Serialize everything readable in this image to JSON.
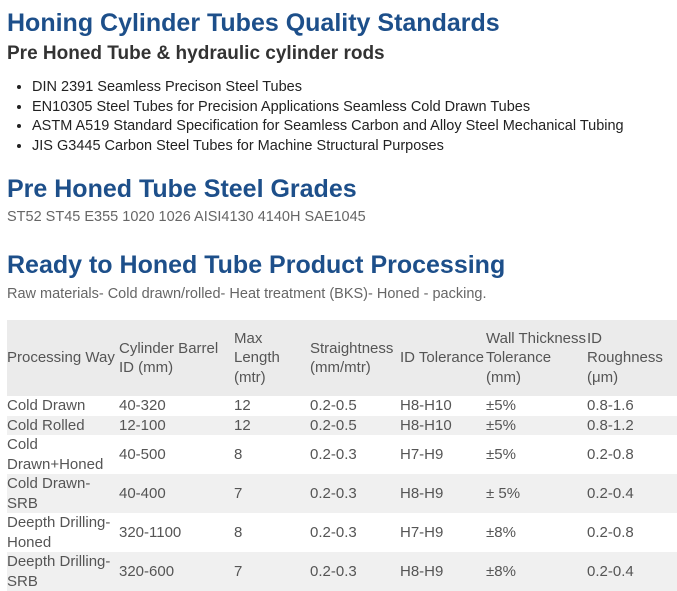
{
  "header": {
    "title": "Honing Cylinder Tubes Quality Standards",
    "subtitle": "Pre Honed Tube & hydraulic cylinder rods"
  },
  "standards": [
    "DIN 2391 Seamless Precison Steel Tubes",
    "EN10305 Steel Tubes for Precision Applications Seamless Cold Drawn Tubes",
    "ASTM A519 Standard Specification for Seamless Carbon and Alloy Steel Mechanical Tubing",
    "JIS G3445 Carbon Steel Tubes for Machine Structural Purposes"
  ],
  "grades": {
    "title": "Pre Honed Tube Steel Grades",
    "text": "ST52 ST45 E355 1020 1026 AISI4130 4140H SAE1045"
  },
  "processing": {
    "title": "Ready to Honed Tube Product Processing",
    "text": "Raw materials- Cold drawn/rolled- Heat treatment (BKS)- Honed - packing."
  },
  "table": {
    "columns": [
      "Processing Way",
      "Cylinder Barrel ID (mm)",
      "Max Length (mtr)",
      "Straightness (mm/mtr)",
      "ID Tolerance",
      "Wall Thickness Tolerance (mm)",
      "ID Roughness (μm)"
    ],
    "rows": [
      [
        "Cold Drawn",
        "40-320",
        "12",
        "0.2-0.5",
        "H8-H10",
        "±5%",
        "0.8-1.6"
      ],
      [
        "Cold Rolled",
        "12-100",
        "12",
        "0.2-0.5",
        "H8-H10",
        "±5%",
        "0.8-1.2"
      ],
      [
        "Cold Drawn+Honed",
        "40-500",
        "8",
        "0.2-0.3",
        "H7-H9",
        "±5%",
        "0.2-0.8"
      ],
      [
        "Cold Drawn-SRB",
        "40-400",
        "7",
        "0.2-0.3",
        "H8-H9",
        "± 5%",
        "0.2-0.4"
      ],
      [
        "Deepth Drilling-Honed",
        "320-1100",
        "8",
        "0.2-0.3",
        "H7-H9",
        "±8%",
        "0.2-0.8"
      ],
      [
        "Deepth Drilling-SRB",
        "320-600",
        "7",
        "0.2-0.3",
        "H8-H9",
        "±8%",
        "0.2-0.4"
      ]
    ]
  }
}
